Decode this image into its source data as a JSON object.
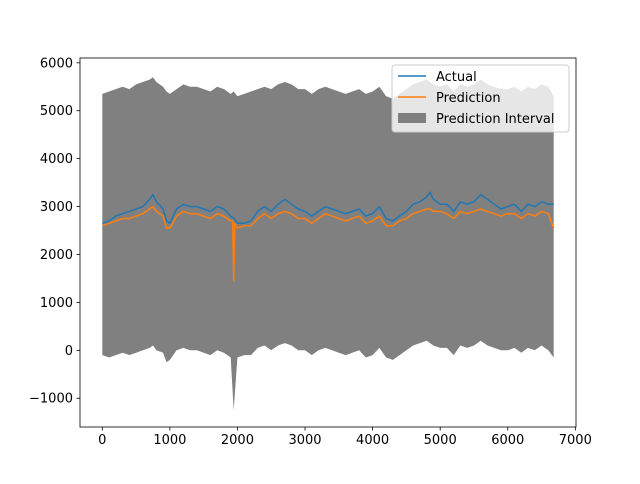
{
  "chart_data": {
    "type": "line",
    "title": "",
    "xlabel": "",
    "ylabel": "",
    "xlim": [
      -330,
      7010
    ],
    "ylim": [
      -1600,
      6100
    ],
    "x_ticks": [
      0,
      1000,
      2000,
      3000,
      4000,
      5000,
      6000,
      7000
    ],
    "x_tick_labels": [
      "0",
      "1000",
      "2000",
      "3000",
      "4000",
      "5000",
      "6000",
      "7000"
    ],
    "y_ticks": [
      -1000,
      0,
      1000,
      2000,
      3000,
      4000,
      5000,
      6000
    ],
    "y_tick_labels": [
      "−1000",
      "0",
      "1000",
      "2000",
      "3000",
      "4000",
      "5000",
      "6000"
    ],
    "grid": false,
    "legend_position": "top-right",
    "x_range": [
      0,
      6680
    ],
    "series": [
      {
        "name": "Actual",
        "color": "#1f77b4",
        "style": "line",
        "x": [
          0,
          100,
          200,
          300,
          400,
          500,
          600,
          700,
          750,
          800,
          900,
          950,
          1000,
          1100,
          1200,
          1300,
          1400,
          1500,
          1600,
          1700,
          1800,
          1900,
          1950,
          2000,
          2100,
          2200,
          2300,
          2400,
          2500,
          2600,
          2700,
          2800,
          2900,
          3000,
          3100,
          3200,
          3300,
          3400,
          3500,
          3600,
          3700,
          3800,
          3900,
          4000,
          4100,
          4200,
          4300,
          4400,
          4500,
          4600,
          4700,
          4800,
          4850,
          4900,
          5000,
          5100,
          5200,
          5300,
          5400,
          5500,
          5600,
          5700,
          5800,
          5900,
          6000,
          6100,
          6200,
          6300,
          6400,
          6500,
          6600,
          6680
        ],
        "y": [
          2650,
          2700,
          2800,
          2850,
          2900,
          2950,
          3000,
          3150,
          3250,
          3100,
          2950,
          2700,
          2650,
          2950,
          3050,
          3000,
          3000,
          2950,
          2900,
          3000,
          2950,
          2800,
          2750,
          2650,
          2650,
          2700,
          2900,
          3000,
          2900,
          3050,
          3150,
          3050,
          2950,
          2900,
          2800,
          2900,
          3000,
          2950,
          2900,
          2850,
          2900,
          2950,
          2800,
          2850,
          3000,
          2750,
          2700,
          2800,
          2900,
          3050,
          3100,
          3200,
          3300,
          3150,
          3050,
          3050,
          2900,
          3100,
          3050,
          3100,
          3250,
          3150,
          3050,
          2950,
          3000,
          3050,
          2900,
          3050,
          3000,
          3100,
          3050,
          3050
        ]
      },
      {
        "name": "Prediction",
        "color": "#ff7f0e",
        "style": "line",
        "x": [
          0,
          100,
          200,
          300,
          400,
          500,
          600,
          700,
          750,
          800,
          900,
          950,
          1000,
          1100,
          1200,
          1300,
          1400,
          1500,
          1600,
          1700,
          1800,
          1900,
          1930,
          1945,
          1960,
          2000,
          2100,
          2200,
          2300,
          2400,
          2500,
          2600,
          2700,
          2800,
          2900,
          3000,
          3100,
          3200,
          3300,
          3400,
          3500,
          3600,
          3700,
          3800,
          3900,
          4000,
          4100,
          4200,
          4300,
          4400,
          4500,
          4600,
          4700,
          4800,
          4850,
          4900,
          5000,
          5100,
          5200,
          5300,
          5400,
          5500,
          5600,
          5700,
          5800,
          5900,
          6000,
          6100,
          6200,
          6300,
          6400,
          6500,
          6600,
          6680
        ],
        "y": [
          2600,
          2650,
          2700,
          2750,
          2750,
          2800,
          2850,
          2950,
          3000,
          2900,
          2800,
          2550,
          2550,
          2800,
          2900,
          2850,
          2850,
          2800,
          2750,
          2850,
          2800,
          2700,
          2700,
          1450,
          2650,
          2550,
          2600,
          2600,
          2750,
          2850,
          2750,
          2850,
          2900,
          2850,
          2750,
          2750,
          2650,
          2750,
          2850,
          2800,
          2750,
          2700,
          2750,
          2800,
          2650,
          2700,
          2800,
          2600,
          2600,
          2700,
          2750,
          2850,
          2900,
          2950,
          2950,
          2900,
          2900,
          2850,
          2750,
          2900,
          2850,
          2900,
          2950,
          2900,
          2850,
          2800,
          2850,
          2850,
          2750,
          2850,
          2800,
          2900,
          2850,
          2550
        ]
      }
    ],
    "interval": {
      "name": "Prediction Interval",
      "color": "#808080",
      "x": [
        0,
        100,
        200,
        300,
        400,
        500,
        600,
        700,
        750,
        800,
        900,
        950,
        1000,
        1100,
        1200,
        1300,
        1400,
        1500,
        1600,
        1700,
        1800,
        1900,
        1945,
        2000,
        2100,
        2200,
        2300,
        2400,
        2500,
        2600,
        2700,
        2800,
        2900,
        3000,
        3100,
        3200,
        3300,
        3400,
        3500,
        3600,
        3700,
        3800,
        3900,
        4000,
        4100,
        4200,
        4300,
        4400,
        4500,
        4600,
        4700,
        4800,
        4900,
        5000,
        5100,
        5200,
        5300,
        5400,
        5500,
        5600,
        5700,
        5800,
        5900,
        6000,
        6100,
        6200,
        6300,
        6400,
        6500,
        6600,
        6680
      ],
      "lower": [
        -100,
        -150,
        -100,
        -50,
        -100,
        -50,
        0,
        50,
        100,
        0,
        -50,
        -250,
        -200,
        0,
        50,
        0,
        0,
        -50,
        -100,
        0,
        -50,
        -150,
        -1250,
        -150,
        -100,
        -100,
        50,
        100,
        0,
        100,
        150,
        100,
        0,
        0,
        -100,
        0,
        50,
        0,
        -50,
        -100,
        -50,
        0,
        -150,
        -100,
        50,
        -150,
        -200,
        -100,
        0,
        100,
        150,
        200,
        100,
        50,
        50,
        -100,
        100,
        50,
        100,
        200,
        100,
        50,
        0,
        0,
        50,
        -50,
        50,
        0,
        100,
        0,
        -150
      ],
      "upper": [
        5350,
        5400,
        5450,
        5500,
        5450,
        5550,
        5600,
        5650,
        5700,
        5600,
        5500,
        5400,
        5350,
        5450,
        5550,
        5500,
        5500,
        5450,
        5400,
        5500,
        5450,
        5350,
        5400,
        5300,
        5350,
        5400,
        5450,
        5500,
        5450,
        5550,
        5600,
        5550,
        5450,
        5450,
        5350,
        5450,
        5500,
        5450,
        5400,
        5350,
        5400,
        5450,
        5350,
        5400,
        5500,
        5300,
        5250,
        5350,
        5450,
        5550,
        5600,
        5650,
        5550,
        5500,
        5550,
        5400,
        5550,
        5500,
        5550,
        5650,
        5550,
        5500,
        5450,
        5450,
        5500,
        5400,
        5500,
        5450,
        5550,
        5500,
        5300
      ]
    }
  }
}
